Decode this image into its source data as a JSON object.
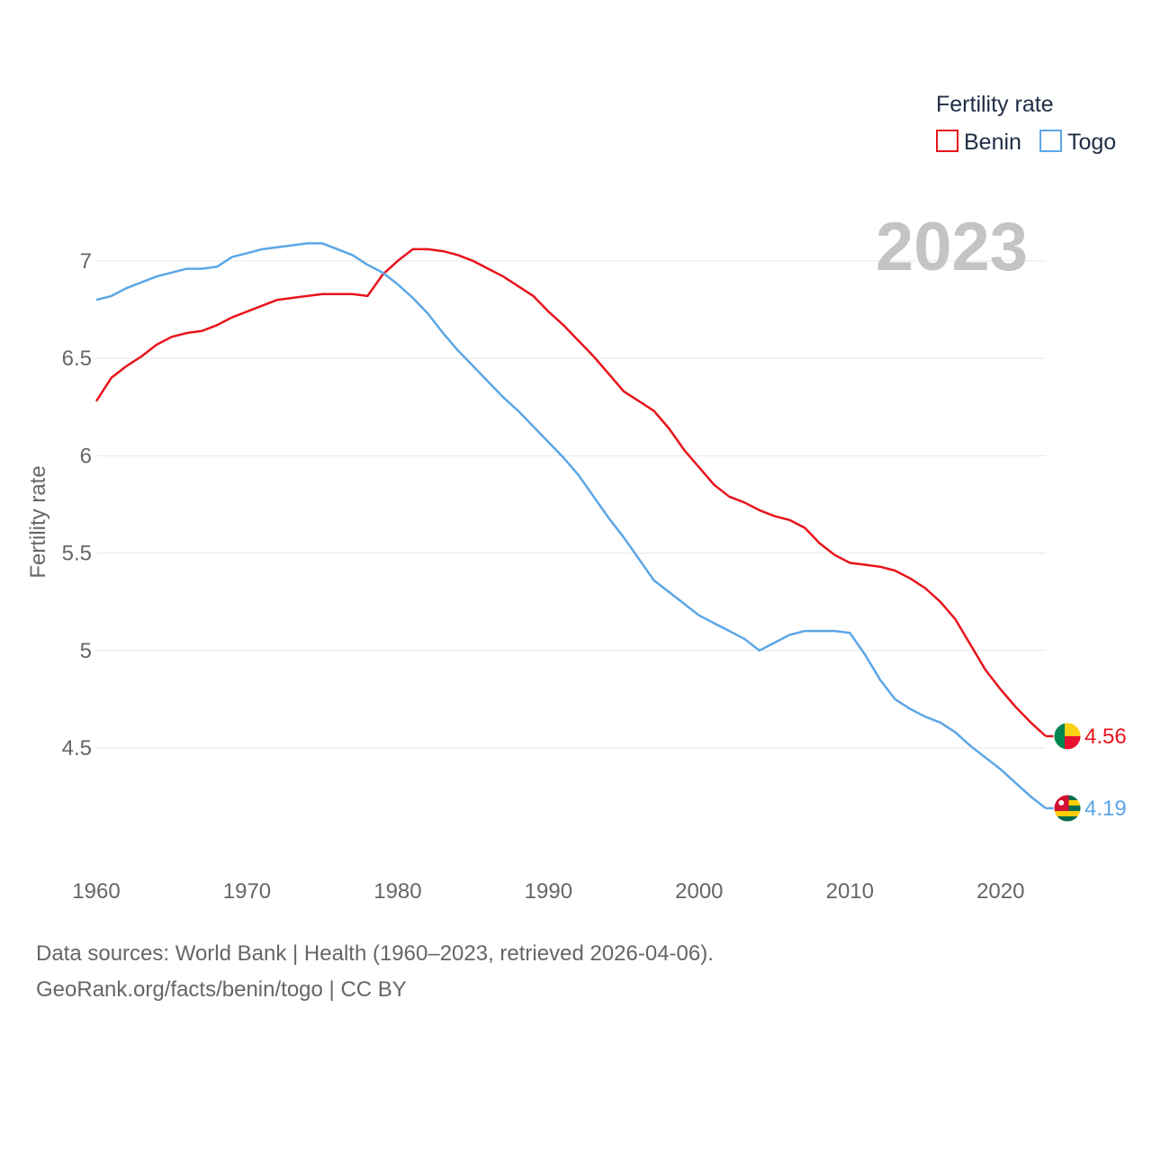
{
  "chart_data": {
    "type": "line",
    "title": "",
    "xlabel": "",
    "ylabel": "Fertility rate",
    "ylim": [
      3.95,
      7.3
    ],
    "xlim": [
      1960,
      2023
    ],
    "y_ticks": [
      "4.5",
      "5",
      "5.5",
      "6",
      "6.5",
      "7"
    ],
    "y_tick_values": [
      4.5,
      5,
      5.5,
      6,
      6.5,
      7
    ],
    "x_ticks": [
      "1960",
      "1970",
      "1980",
      "1990",
      "2000",
      "2010",
      "2020"
    ],
    "x_tick_values": [
      1960,
      1970,
      1980,
      1990,
      2000,
      2010,
      2020
    ],
    "year_label": "2023",
    "legend": {
      "title": "Fertility rate",
      "position": "top-right"
    },
    "x": [
      1960,
      1961,
      1962,
      1963,
      1964,
      1965,
      1966,
      1967,
      1968,
      1969,
      1970,
      1971,
      1972,
      1973,
      1974,
      1975,
      1976,
      1977,
      1978,
      1979,
      1980,
      1981,
      1982,
      1983,
      1984,
      1985,
      1986,
      1987,
      1988,
      1989,
      1990,
      1991,
      1992,
      1993,
      1994,
      1995,
      1996,
      1997,
      1998,
      1999,
      2000,
      2001,
      2002,
      2003,
      2004,
      2005,
      2006,
      2007,
      2008,
      2009,
      2010,
      2011,
      2012,
      2013,
      2014,
      2015,
      2016,
      2017,
      2018,
      2019,
      2020,
      2021,
      2022,
      2023
    ],
    "series": [
      {
        "name": "Benin",
        "color": "#e8141c",
        "end_value": 4.56,
        "end_label": "4.56",
        "flag": "benin-flag",
        "values": [
          6.28,
          6.4,
          6.46,
          6.51,
          6.57,
          6.61,
          6.63,
          6.64,
          6.67,
          6.71,
          6.74,
          6.77,
          6.8,
          6.81,
          6.82,
          6.83,
          6.83,
          6.83,
          6.82,
          6.93,
          7.0,
          7.06,
          7.06,
          7.05,
          7.03,
          7.0,
          6.96,
          6.92,
          6.87,
          6.82,
          6.74,
          6.67,
          6.59,
          6.51,
          6.42,
          6.33,
          6.28,
          6.23,
          6.14,
          6.03,
          5.94,
          5.85,
          5.79,
          5.76,
          5.72,
          5.69,
          5.67,
          5.63,
          5.55,
          5.49,
          5.45,
          5.44,
          5.43,
          5.41,
          5.37,
          5.32,
          5.25,
          5.16,
          5.03,
          4.9,
          4.8,
          4.71,
          4.63,
          4.56
        ]
      },
      {
        "name": "Togo",
        "color": "#5ba6e6",
        "end_value": 4.19,
        "end_label": "4.19",
        "flag": "togo-flag",
        "values": [
          6.8,
          6.82,
          6.86,
          6.89,
          6.92,
          6.94,
          6.96,
          6.96,
          6.97,
          7.02,
          7.04,
          7.06,
          7.07,
          7.08,
          7.09,
          7.09,
          7.06,
          7.03,
          6.98,
          6.94,
          6.88,
          6.81,
          6.73,
          6.63,
          6.54,
          6.46,
          6.38,
          6.3,
          6.23,
          6.15,
          6.07,
          5.99,
          5.9,
          5.79,
          5.68,
          5.58,
          5.47,
          5.36,
          5.3,
          5.24,
          5.18,
          5.14,
          5.1,
          5.06,
          5.0,
          5.04,
          5.08,
          5.1,
          5.1,
          5.1,
          5.09,
          4.98,
          4.85,
          4.75,
          4.7,
          4.66,
          4.63,
          4.58,
          4.51,
          4.45,
          4.39,
          4.32,
          4.25,
          4.19
        ]
      }
    ]
  },
  "footer": {
    "line1": "Data sources: World Bank | Health (1960–2023, retrieved 2026-04-06).",
    "line2": "GeoRank.org/facts/benin/togo | CC BY"
  }
}
